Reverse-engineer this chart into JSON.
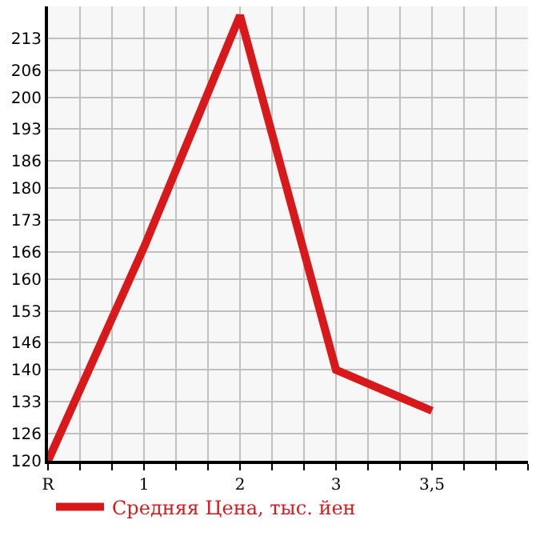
{
  "chart_data": {
    "type": "line",
    "categories": [
      "R",
      "1",
      "2",
      "3",
      "3,5"
    ],
    "series": [
      {
        "name": "Средняя Цена, тыс. йен",
        "color": "#d7191c",
        "values": [
          120,
          167,
          218,
          140,
          131
        ]
      }
    ],
    "ylim": [
      120,
      220
    ],
    "yticks": [
      120,
      126,
      133,
      140,
      146,
      153,
      160,
      166,
      173,
      180,
      186,
      193,
      200,
      206,
      213
    ],
    "grid": true,
    "legend": "bottom left",
    "marker": "none",
    "line_style": "solid"
  }
}
